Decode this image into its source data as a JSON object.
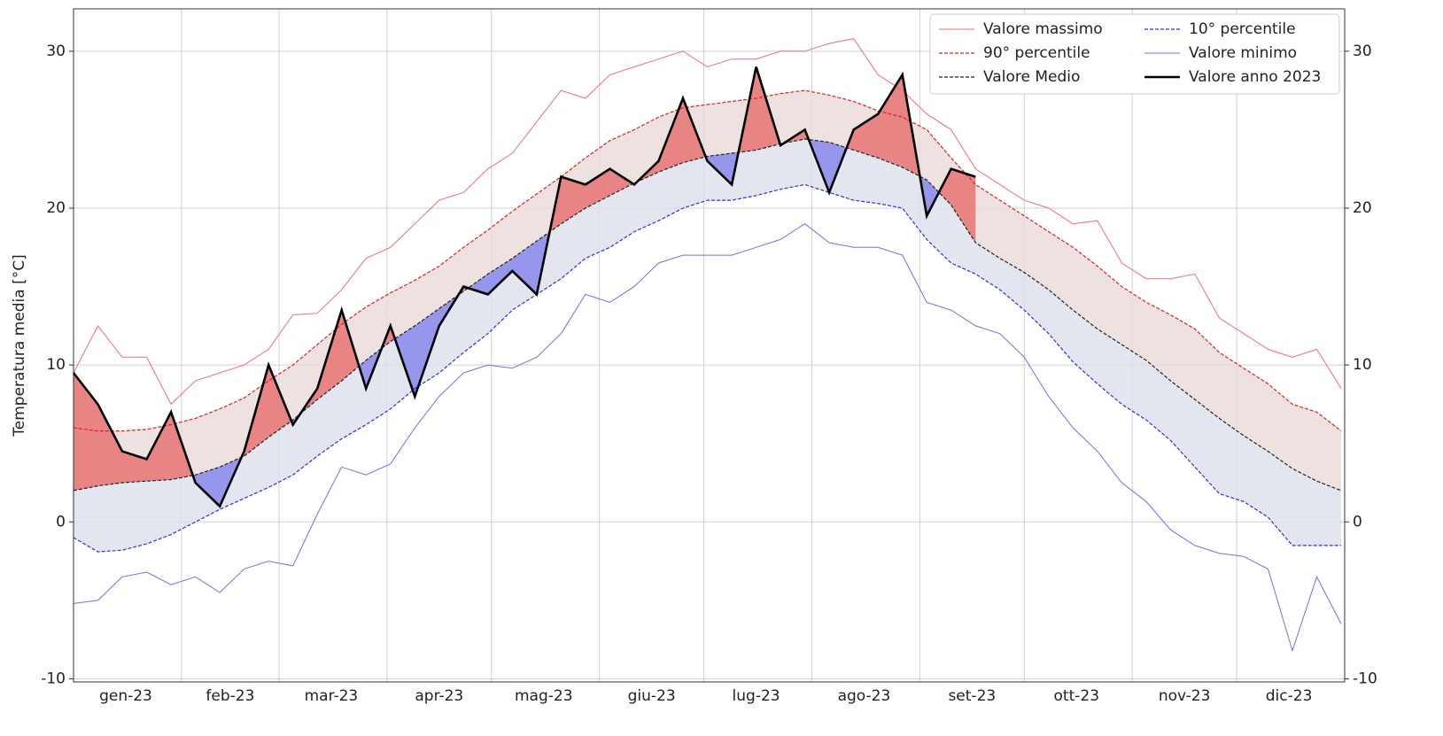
{
  "chart_data": {
    "type": "line",
    "ylabel": "Temperatura media [°C]",
    "x": [
      0,
      7,
      14,
      21,
      28,
      35,
      42,
      49,
      56,
      63,
      70,
      77,
      84,
      91,
      98,
      105,
      112,
      119,
      126,
      133,
      140,
      147,
      154,
      161,
      168,
      175,
      182,
      189,
      196,
      203,
      210,
      217,
      224,
      231,
      238,
      245,
      252,
      259,
      266,
      273,
      280,
      287,
      294,
      301,
      308,
      315,
      322,
      329,
      336,
      343,
      350,
      357,
      364
    ],
    "xlim": [
      0,
      365
    ],
    "xticks": [
      {
        "value": 15,
        "label": "gen-23"
      },
      {
        "value": 45,
        "label": "feb-23"
      },
      {
        "value": 74,
        "label": "mar-23"
      },
      {
        "value": 105,
        "label": "apr-23"
      },
      {
        "value": 135,
        "label": "mag-23"
      },
      {
        "value": 166,
        "label": "giu-23"
      },
      {
        "value": 196,
        "label": "lug-23"
      },
      {
        "value": 227,
        "label": "ago-23"
      },
      {
        "value": 258,
        "label": "set-23"
      },
      {
        "value": 288,
        "label": "ott-23"
      },
      {
        "value": 319,
        "label": "nov-23"
      },
      {
        "value": 349,
        "label": "dic-23"
      }
    ],
    "x_gridlines": [
      31,
      59,
      90,
      120,
      151,
      181,
      212,
      243,
      273,
      304,
      334
    ],
    "ylim": [
      -10.2,
      32.7
    ],
    "yticks": [
      -10,
      0,
      10,
      20,
      30
    ],
    "y2lim": [
      -10.2,
      32.7
    ],
    "y2ticks": [
      -10,
      0,
      10,
      20,
      30
    ],
    "grid": true,
    "legend": "upper right",
    "band_colors": {
      "upper": "#e9dbd8",
      "lower": "#dde0eb",
      "above": "#e98484",
      "below": "#9696ec"
    },
    "series": [
      {
        "name": "Valore massimo",
        "color": "#f07070",
        "style": "solid",
        "width": 1,
        "values": [
          9.5,
          12.5,
          10.5,
          10.5,
          7.5,
          9.0,
          9.5,
          10.0,
          11.0,
          13.2,
          13.3,
          14.8,
          16.8,
          17.5,
          19.0,
          20.5,
          21.0,
          22.5,
          23.5,
          25.5,
          27.5,
          27.0,
          28.5,
          29.0,
          29.5,
          30.0,
          29.0,
          29.5,
          29.5,
          30.0,
          30.0,
          30.5,
          30.8,
          28.5,
          27.5,
          26.0,
          25.0,
          22.5,
          21.5,
          20.5,
          20.0,
          19.0,
          19.2,
          16.5,
          15.5,
          15.5,
          15.8,
          13.0,
          12.0,
          11.0,
          10.5,
          11.0,
          8.5
        ]
      },
      {
        "name": "90° percentile",
        "color": "#e02020",
        "style": "dashed",
        "width": 1.2,
        "values": [
          6.0,
          5.8,
          5.8,
          5.9,
          6.2,
          6.6,
          7.2,
          7.9,
          9.0,
          10.0,
          11.3,
          12.6,
          13.7,
          14.6,
          15.4,
          16.3,
          17.5,
          18.6,
          19.8,
          20.9,
          22.0,
          23.2,
          24.3,
          25.0,
          25.8,
          26.4,
          26.6,
          26.8,
          27.0,
          27.3,
          27.5,
          27.2,
          26.8,
          26.2,
          25.8,
          25.0,
          23.2,
          21.5,
          20.5,
          19.5,
          18.5,
          17.5,
          16.3,
          15.0,
          14.0,
          13.2,
          12.3,
          10.8,
          9.8,
          8.8,
          7.5,
          7.0,
          5.8
        ]
      },
      {
        "name": "Valore Medio",
        "color": "#222222",
        "style": "dashed",
        "width": 1.2,
        "values": [
          2.0,
          2.3,
          2.5,
          2.6,
          2.7,
          3.0,
          3.5,
          4.2,
          5.4,
          6.5,
          7.8,
          9.0,
          10.3,
          11.5,
          12.5,
          13.6,
          14.7,
          15.8,
          16.8,
          17.9,
          19.0,
          20.0,
          20.8,
          21.6,
          22.3,
          22.9,
          23.3,
          23.5,
          23.7,
          24.1,
          24.4,
          24.2,
          23.7,
          23.2,
          22.6,
          21.8,
          20.2,
          17.8,
          16.8,
          15.9,
          14.8,
          13.5,
          12.3,
          11.3,
          10.3,
          9.0,
          7.8,
          6.6,
          5.5,
          4.5,
          3.4,
          2.6,
          2.0
        ]
      },
      {
        "name": "10° percentile",
        "color": "#3030e0",
        "style": "dashed",
        "width": 1.2,
        "values": [
          -1.0,
          -1.9,
          -1.8,
          -1.4,
          -0.8,
          0,
          0.8,
          1.5,
          2.2,
          3.0,
          4.2,
          5.3,
          6.2,
          7.2,
          8.5,
          9.5,
          10.8,
          12.0,
          13.5,
          14.5,
          15.5,
          16.8,
          17.5,
          18.5,
          19.2,
          20.0,
          20.5,
          20.5,
          20.8,
          21.2,
          21.5,
          21.0,
          20.5,
          20.3,
          20.0,
          18.0,
          16.5,
          15.8,
          14.8,
          13.5,
          12.0,
          10.2,
          8.8,
          7.5,
          6.5,
          5.2,
          3.5,
          1.8,
          1.3,
          0.3,
          -1.5,
          -1.5,
          -1.5
        ]
      },
      {
        "name": "Valore minimo",
        "color": "#7070f0",
        "style": "solid",
        "width": 1,
        "values": [
          -5.2,
          -5.0,
          -3.5,
          -3.2,
          -4.0,
          -3.5,
          -4.5,
          -3.0,
          -2.5,
          -2.8,
          0.5,
          3.5,
          3.0,
          3.7,
          6.0,
          8.0,
          9.5,
          10.0,
          9.8,
          10.5,
          12.0,
          14.5,
          14.0,
          15.0,
          16.5,
          17.0,
          17.0,
          17.0,
          17.5,
          18.0,
          19.0,
          17.8,
          17.5,
          17.5,
          17.0,
          14.0,
          13.5,
          12.5,
          12.0,
          10.5,
          8.0,
          6.0,
          4.5,
          2.5,
          1.3,
          -0.5,
          -1.5,
          -2.0,
          -2.2,
          -3.0,
          -8.2,
          -3.5,
          -6.5
        ]
      },
      {
        "name": "Valore anno 2023",
        "color": "#000000",
        "style": "solid",
        "width": 2.6,
        "values": [
          9.5,
          7.5,
          4.5,
          4.0,
          7.0,
          2.5,
          1.0,
          4.5,
          10.0,
          6.2,
          8.5,
          13.5,
          8.5,
          12.5,
          8.0,
          12.5,
          15.0,
          14.5,
          16.0,
          14.5,
          22.0,
          21.5,
          22.5,
          21.5,
          23.0,
          27.0,
          23.0,
          21.5,
          29.0,
          24.0,
          25.0,
          21.0,
          25.0,
          26.0,
          28.5,
          19.5,
          22.5,
          22.0,
          null,
          null,
          null,
          null,
          null,
          null,
          null,
          null,
          null,
          null,
          null,
          null,
          null,
          null,
          null
        ]
      }
    ]
  }
}
